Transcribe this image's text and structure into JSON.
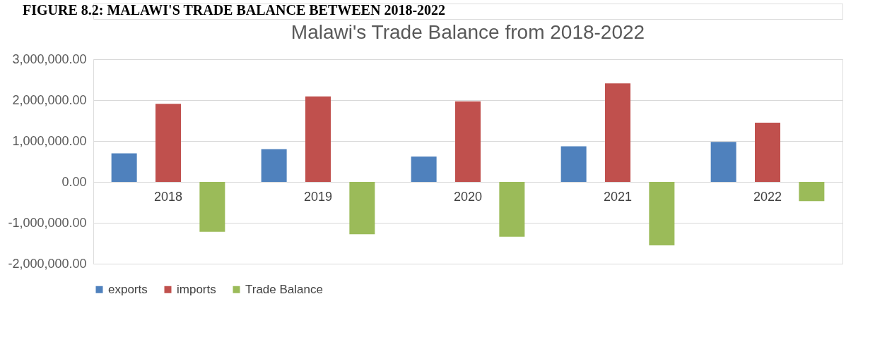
{
  "chart_data": {
    "type": "bar",
    "title": "Malawi's Trade Balance from 2018-2022",
    "annotations": [
      "FIGURE 8.2: MALAWI'S TRADE BALANCE BETWEEN 2018-2022"
    ],
    "categories": [
      "2018",
      "2019",
      "2020",
      "2021",
      "2022"
    ],
    "series": [
      {
        "name": "exports",
        "color": "#4f81bd",
        "values": [
          700000,
          800000,
          620000,
          870000,
          980000
        ]
      },
      {
        "name": "imports",
        "color": "#c0504d",
        "values": [
          1910000,
          2090000,
          1970000,
          2410000,
          1450000
        ]
      },
      {
        "name": "Trade Balance",
        "color": "#9bbb59",
        "values": [
          -1220000,
          -1280000,
          -1340000,
          -1550000,
          -470000
        ]
      }
    ],
    "ylim": [
      -2000000,
      3000000
    ],
    "yticks": [
      {
        "value": -2000000,
        "label": "-2,000,000.00"
      },
      {
        "value": -1000000,
        "label": "-1,000,000.00"
      },
      {
        "value": 0,
        "label": "0.00"
      },
      {
        "value": 1000000,
        "label": "1,000,000.00"
      },
      {
        "value": 2000000,
        "label": "2,000,000.00"
      },
      {
        "value": 3000000,
        "label": "3,000,000.00"
      }
    ],
    "grid": "y",
    "legend": "bottom"
  }
}
